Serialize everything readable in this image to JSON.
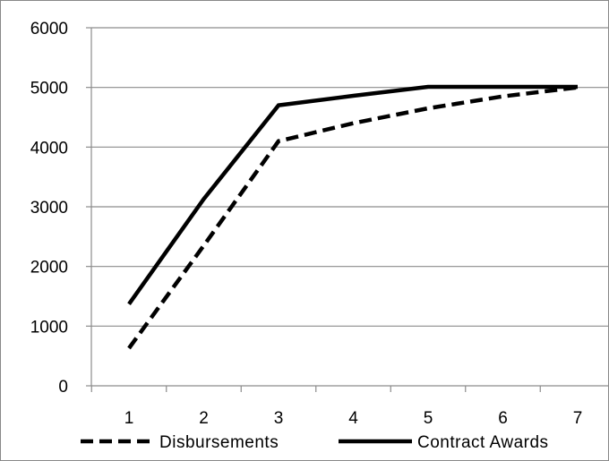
{
  "chart_data": {
    "type": "line",
    "title": "",
    "xlabel": "",
    "ylabel": "",
    "x": [
      1,
      2,
      3,
      4,
      5,
      6,
      7
    ],
    "x_tick_labels": [
      "1",
      "2",
      "3",
      "4",
      "5",
      "6",
      "7"
    ],
    "ylim": [
      0,
      6000
    ],
    "y_ticks": [
      0,
      1000,
      2000,
      3000,
      4000,
      5000,
      6000
    ],
    "y_tick_labels": [
      "0",
      "1000",
      "2000",
      "3000",
      "4000",
      "5000",
      "6000"
    ],
    "grid": "horizontal",
    "legend_position": "bottom",
    "series": [
      {
        "name": "Disbursements",
        "style": "dashed",
        "color": "#000000",
        "values": [
          630,
          2350,
          4100,
          4400,
          4650,
          4850,
          5000
        ]
      },
      {
        "name": "Contract Awards",
        "style": "solid",
        "color": "#000000",
        "values": [
          1370,
          3130,
          4700,
          4860,
          5010,
          5010,
          5010
        ]
      }
    ]
  }
}
